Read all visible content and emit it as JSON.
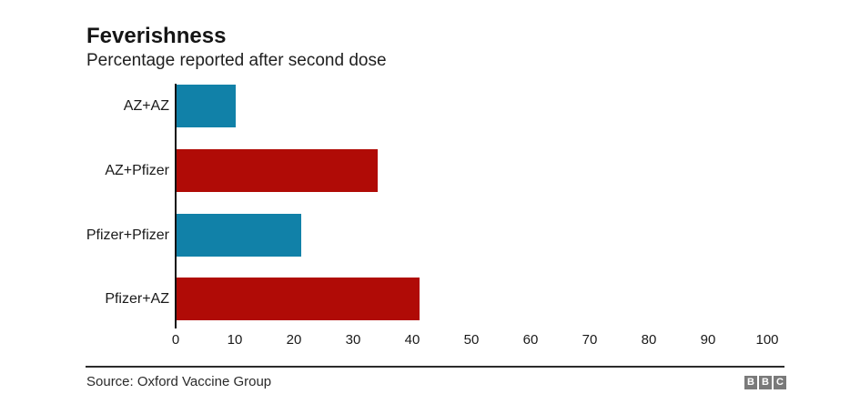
{
  "header": {
    "title": "Feverishness",
    "subtitle": "Percentage reported after second dose"
  },
  "chart_data": {
    "type": "bar",
    "orientation": "horizontal",
    "title": "Feverishness",
    "subtitle": "Percentage reported after second dose",
    "categories": [
      "AZ+AZ",
      "AZ+Pfizer",
      "Pfizer+Pfizer",
      "Pfizer+AZ"
    ],
    "values": [
      10,
      34,
      21,
      41
    ],
    "bar_colors": [
      "#1181a8",
      "#b00b06",
      "#1181a8",
      "#b00b06"
    ],
    "xlabel": "",
    "ylabel": "",
    "xlim": [
      0,
      100
    ],
    "x_ticks": [
      0,
      10,
      20,
      30,
      40,
      50,
      60,
      70,
      80,
      90,
      100
    ],
    "grid": false,
    "legend": null,
    "axis_color": "#111111"
  },
  "colors": {
    "blue": "#1181a8",
    "red": "#b00b06",
    "logo_gray": "#7a7a7a",
    "divider": "#2b2b2b"
  },
  "footer": {
    "source": "Source: Oxford Vaccine Group",
    "logo_letters": [
      "B",
      "B",
      "C"
    ]
  }
}
